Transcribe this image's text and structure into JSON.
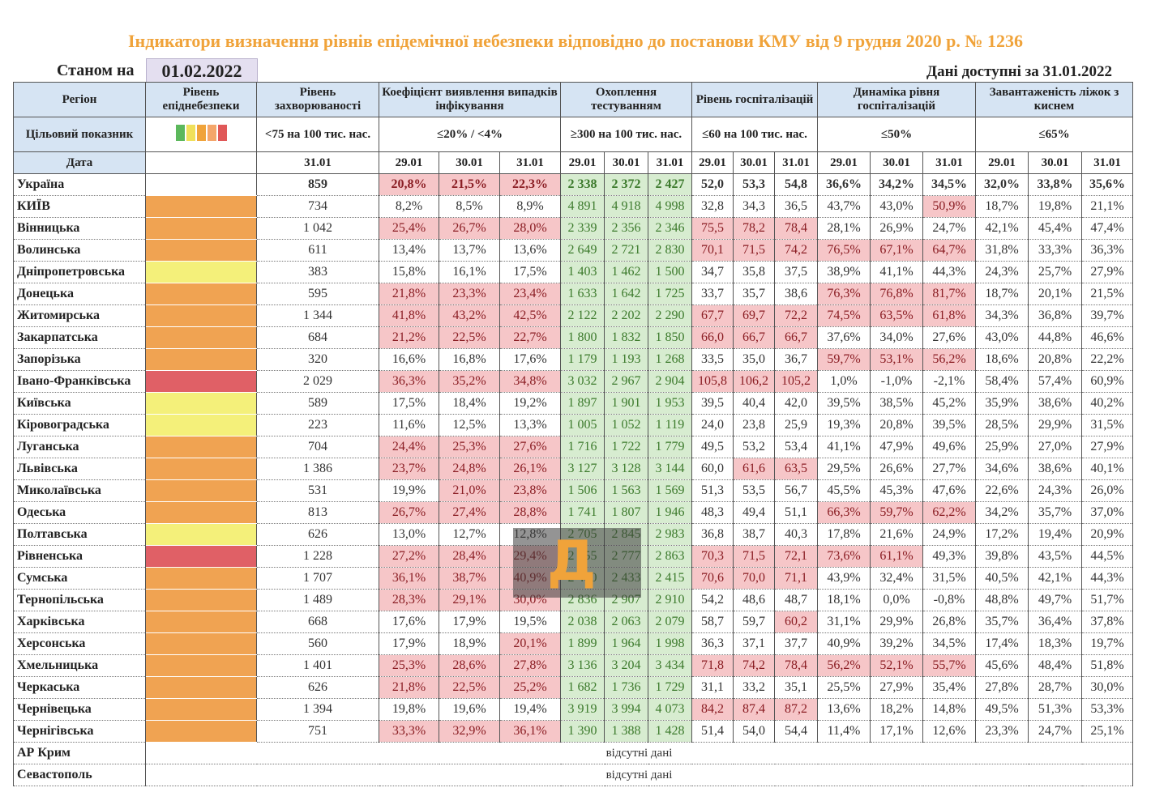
{
  "title": "Індикатори визначення рівнів епідемічної небезпеки відповідно до постанови КМУ від 9 грудня 2020 р. № 1236",
  "as_of_label": "Станом на",
  "as_of_date": "01.02.2022",
  "data_available": "Дані доступні за 31.01.2022",
  "headers": {
    "region": "Регіон",
    "level": "Рівень епіднебезпеки",
    "incidence": "Рівень захворюваності",
    "detection": "Коефіцієнт виявлення випадків інфікування",
    "testing": "Охоплення тестуванням",
    "hosp": "Рівень госпіталізацій",
    "dynamics": "Динаміка рівня госпіталізацій",
    "beds": "Завантаженість ліжок з киснем"
  },
  "targets": {
    "label": "Цільовий показник",
    "incidence": "<75 на 100 тис. нас.",
    "detection": "≤20% / <4%",
    "testing": "≥300 на 100 тис. нас.",
    "hosp": "≤60 на 100 тис. нас.",
    "dynamics": "≤50%",
    "beds": "≤65%"
  },
  "level_colors": [
    "#5cb85c",
    "#f0e05a",
    "#f0a33a",
    "#f4a66a",
    "#e05858"
  ],
  "dates": {
    "label": "Дата",
    "incidence": "31.01",
    "group": [
      "29.01",
      "30.01",
      "31.01"
    ]
  },
  "colors": {
    "orange": "#f0a352",
    "yellow": "#f4f07a",
    "red": "#e06066",
    "title": "#f0a33a",
    "pink": "#f6c6c8",
    "green": "#d7ecd0"
  },
  "rows": [
    {
      "name": "Україна",
      "level": "none",
      "inc": "859",
      "det": [
        "20,8%",
        "21,5%",
        "22,3%"
      ],
      "test": [
        "2 338",
        "2 372",
        "2 427"
      ],
      "hosp": [
        "52,0",
        "53,3",
        "54,8"
      ],
      "dyn": [
        "36,6%",
        "34,2%",
        "34,5%"
      ],
      "beds": [
        "32,0%",
        "33,8%",
        "35,6%"
      ],
      "det_hl": [
        1,
        1,
        1
      ],
      "hosp_hl": [
        0,
        0,
        0
      ],
      "dyn_hl": [
        0,
        0,
        0
      ]
    },
    {
      "name": "КИЇВ",
      "level": "orange",
      "inc": "734",
      "det": [
        "8,2%",
        "8,5%",
        "8,9%"
      ],
      "test": [
        "4 891",
        "4 918",
        "4 998"
      ],
      "hosp": [
        "32,8",
        "34,3",
        "36,5"
      ],
      "dyn": [
        "43,7%",
        "43,0%",
        "50,9%"
      ],
      "beds": [
        "18,7%",
        "19,8%",
        "21,1%"
      ],
      "det_hl": [
        0,
        0,
        0
      ],
      "hosp_hl": [
        0,
        0,
        0
      ],
      "dyn_hl": [
        0,
        0,
        1
      ]
    },
    {
      "name": "Вінницька",
      "level": "orange",
      "inc": "1 042",
      "det": [
        "25,4%",
        "26,7%",
        "28,0%"
      ],
      "test": [
        "2 339",
        "2 356",
        "2 346"
      ],
      "hosp": [
        "75,5",
        "78,2",
        "78,4"
      ],
      "dyn": [
        "28,1%",
        "26,9%",
        "24,7%"
      ],
      "beds": [
        "42,1%",
        "45,4%",
        "47,4%"
      ],
      "det_hl": [
        1,
        1,
        1
      ],
      "hosp_hl": [
        1,
        1,
        1
      ],
      "dyn_hl": [
        0,
        0,
        0
      ]
    },
    {
      "name": "Волинська",
      "level": "orange",
      "inc": "611",
      "det": [
        "13,4%",
        "13,7%",
        "13,6%"
      ],
      "test": [
        "2 649",
        "2 721",
        "2 830"
      ],
      "hosp": [
        "70,1",
        "71,5",
        "74,2"
      ],
      "dyn": [
        "76,5%",
        "67,1%",
        "64,7%"
      ],
      "beds": [
        "31,8%",
        "33,3%",
        "36,3%"
      ],
      "det_hl": [
        0,
        0,
        0
      ],
      "hosp_hl": [
        1,
        1,
        1
      ],
      "dyn_hl": [
        1,
        1,
        1
      ]
    },
    {
      "name": "Дніпропетровська",
      "level": "yellow",
      "inc": "383",
      "det": [
        "15,8%",
        "16,1%",
        "17,5%"
      ],
      "test": [
        "1 403",
        "1 462",
        "1 500"
      ],
      "hosp": [
        "34,7",
        "35,8",
        "37,5"
      ],
      "dyn": [
        "38,9%",
        "41,1%",
        "44,3%"
      ],
      "beds": [
        "24,3%",
        "25,7%",
        "27,9%"
      ],
      "det_hl": [
        0,
        0,
        0
      ],
      "hosp_hl": [
        0,
        0,
        0
      ],
      "dyn_hl": [
        0,
        0,
        0
      ]
    },
    {
      "name": "Донецька",
      "level": "orange",
      "inc": "595",
      "det": [
        "21,8%",
        "23,3%",
        "23,4%"
      ],
      "test": [
        "1 633",
        "1 642",
        "1 725"
      ],
      "hosp": [
        "33,7",
        "35,7",
        "38,6"
      ],
      "dyn": [
        "76,3%",
        "76,8%",
        "81,7%"
      ],
      "beds": [
        "18,7%",
        "20,1%",
        "21,5%"
      ],
      "det_hl": [
        1,
        1,
        1
      ],
      "hosp_hl": [
        0,
        0,
        0
      ],
      "dyn_hl": [
        1,
        1,
        1
      ]
    },
    {
      "name": "Житомирська",
      "level": "orange",
      "inc": "1 344",
      "det": [
        "41,8%",
        "43,2%",
        "42,5%"
      ],
      "test": [
        "2 122",
        "2 202",
        "2 290"
      ],
      "hosp": [
        "67,7",
        "69,7",
        "72,2"
      ],
      "dyn": [
        "74,5%",
        "63,5%",
        "61,8%"
      ],
      "beds": [
        "34,3%",
        "36,8%",
        "39,7%"
      ],
      "det_hl": [
        1,
        1,
        1
      ],
      "hosp_hl": [
        1,
        1,
        1
      ],
      "dyn_hl": [
        1,
        1,
        1
      ]
    },
    {
      "name": "Закарпатська",
      "level": "orange",
      "inc": "684",
      "det": [
        "21,2%",
        "22,5%",
        "22,7%"
      ],
      "test": [
        "1 800",
        "1 832",
        "1 850"
      ],
      "hosp": [
        "66,0",
        "66,7",
        "66,7"
      ],
      "dyn": [
        "37,6%",
        "34,0%",
        "27,6%"
      ],
      "beds": [
        "43,0%",
        "44,8%",
        "46,6%"
      ],
      "det_hl": [
        1,
        1,
        1
      ],
      "hosp_hl": [
        1,
        1,
        1
      ],
      "dyn_hl": [
        0,
        0,
        0
      ]
    },
    {
      "name": "Запорізька",
      "level": "orange",
      "inc": "320",
      "det": [
        "16,6%",
        "16,8%",
        "17,6%"
      ],
      "test": [
        "1 179",
        "1 193",
        "1 268"
      ],
      "hosp": [
        "33,5",
        "35,0",
        "36,7"
      ],
      "dyn": [
        "59,7%",
        "53,1%",
        "56,2%"
      ],
      "beds": [
        "18,6%",
        "20,8%",
        "22,2%"
      ],
      "det_hl": [
        0,
        0,
        0
      ],
      "hosp_hl": [
        0,
        0,
        0
      ],
      "dyn_hl": [
        1,
        1,
        1
      ]
    },
    {
      "name": "Івано-Франківська",
      "level": "red",
      "inc": "2 029",
      "det": [
        "36,3%",
        "35,2%",
        "34,8%"
      ],
      "test": [
        "3 032",
        "2 967",
        "2 904"
      ],
      "hosp": [
        "105,8",
        "106,2",
        "105,2"
      ],
      "dyn": [
        "1,0%",
        "-1,0%",
        "-2,1%"
      ],
      "beds": [
        "58,4%",
        "57,4%",
        "60,9%"
      ],
      "det_hl": [
        1,
        1,
        1
      ],
      "hosp_hl": [
        1,
        1,
        1
      ],
      "dyn_hl": [
        0,
        0,
        0
      ]
    },
    {
      "name": "Київська",
      "level": "yellow",
      "inc": "589",
      "det": [
        "17,5%",
        "18,4%",
        "19,2%"
      ],
      "test": [
        "1 897",
        "1 901",
        "1 953"
      ],
      "hosp": [
        "39,5",
        "40,4",
        "42,0"
      ],
      "dyn": [
        "39,5%",
        "38,5%",
        "45,2%"
      ],
      "beds": [
        "35,9%",
        "38,6%",
        "40,2%"
      ],
      "det_hl": [
        0,
        0,
        0
      ],
      "hosp_hl": [
        0,
        0,
        0
      ],
      "dyn_hl": [
        0,
        0,
        0
      ]
    },
    {
      "name": "Кіровоградська",
      "level": "yellow",
      "inc": "223",
      "det": [
        "11,6%",
        "12,5%",
        "13,3%"
      ],
      "test": [
        "1 005",
        "1 052",
        "1 119"
      ],
      "hosp": [
        "24,0",
        "23,8",
        "25,9"
      ],
      "dyn": [
        "19,3%",
        "20,8%",
        "39,5%"
      ],
      "beds": [
        "28,5%",
        "29,9%",
        "31,5%"
      ],
      "det_hl": [
        0,
        0,
        0
      ],
      "hosp_hl": [
        0,
        0,
        0
      ],
      "dyn_hl": [
        0,
        0,
        0
      ]
    },
    {
      "name": "Луганська",
      "level": "orange",
      "inc": "704",
      "det": [
        "24,4%",
        "25,3%",
        "27,6%"
      ],
      "test": [
        "1 716",
        "1 722",
        "1 779"
      ],
      "hosp": [
        "49,5",
        "53,2",
        "53,4"
      ],
      "dyn": [
        "41,1%",
        "47,9%",
        "49,6%"
      ],
      "beds": [
        "25,9%",
        "27,0%",
        "27,9%"
      ],
      "det_hl": [
        1,
        1,
        1
      ],
      "hosp_hl": [
        0,
        0,
        0
      ],
      "dyn_hl": [
        0,
        0,
        0
      ]
    },
    {
      "name": "Львівська",
      "level": "orange",
      "inc": "1 386",
      "det": [
        "23,7%",
        "24,8%",
        "26,1%"
      ],
      "test": [
        "3 127",
        "3 128",
        "3 144"
      ],
      "hosp": [
        "60,0",
        "61,6",
        "63,5"
      ],
      "dyn": [
        "29,5%",
        "26,6%",
        "27,7%"
      ],
      "beds": [
        "34,6%",
        "38,6%",
        "40,1%"
      ],
      "det_hl": [
        1,
        1,
        1
      ],
      "hosp_hl": [
        0,
        1,
        1
      ],
      "dyn_hl": [
        0,
        0,
        0
      ]
    },
    {
      "name": "Миколаївська",
      "level": "orange",
      "inc": "531",
      "det": [
        "19,9%",
        "21,0%",
        "23,8%"
      ],
      "test": [
        "1 506",
        "1 563",
        "1 569"
      ],
      "hosp": [
        "51,3",
        "53,5",
        "56,7"
      ],
      "dyn": [
        "45,5%",
        "45,3%",
        "47,6%"
      ],
      "beds": [
        "22,6%",
        "24,3%",
        "26,0%"
      ],
      "det_hl": [
        0,
        1,
        1
      ],
      "hosp_hl": [
        0,
        0,
        0
      ],
      "dyn_hl": [
        0,
        0,
        0
      ]
    },
    {
      "name": "Одеська",
      "level": "orange",
      "inc": "813",
      "det": [
        "26,7%",
        "27,4%",
        "28,8%"
      ],
      "test": [
        "1 741",
        "1 807",
        "1 946"
      ],
      "hosp": [
        "48,3",
        "49,4",
        "51,1"
      ],
      "dyn": [
        "66,3%",
        "59,7%",
        "62,2%"
      ],
      "beds": [
        "34,2%",
        "35,7%",
        "37,0%"
      ],
      "det_hl": [
        1,
        1,
        1
      ],
      "hosp_hl": [
        0,
        0,
        0
      ],
      "dyn_hl": [
        1,
        1,
        1
      ]
    },
    {
      "name": "Полтавська",
      "level": "yellow",
      "inc": "626",
      "det": [
        "13,0%",
        "12,7%",
        "12,8%"
      ],
      "test": [
        "2 705",
        "2 845",
        "2 983"
      ],
      "hosp": [
        "36,8",
        "38,7",
        "40,3"
      ],
      "dyn": [
        "17,8%",
        "21,6%",
        "24,9%"
      ],
      "beds": [
        "17,2%",
        "19,4%",
        "20,9%"
      ],
      "det_hl": [
        0,
        0,
        0
      ],
      "hosp_hl": [
        0,
        0,
        0
      ],
      "dyn_hl": [
        0,
        0,
        0
      ]
    },
    {
      "name": "Рівненська",
      "level": "red",
      "inc": "1 228",
      "det": [
        "27,2%",
        "28,4%",
        "29,4%"
      ],
      "test": [
        "2 755",
        "2 777",
        "2 863"
      ],
      "hosp": [
        "70,3",
        "71,5",
        "72,1"
      ],
      "dyn": [
        "73,6%",
        "61,1%",
        "49,3%"
      ],
      "beds": [
        "39,8%",
        "43,5%",
        "44,5%"
      ],
      "det_hl": [
        1,
        1,
        1
      ],
      "hosp_hl": [
        1,
        1,
        1
      ],
      "dyn_hl": [
        1,
        1,
        0
      ]
    },
    {
      "name": "Сумська",
      "level": "orange",
      "inc": "1 707",
      "det": [
        "36,1%",
        "38,7%",
        "40,9%"
      ],
      "test": [
        "2 480",
        "2 433",
        "2 415"
      ],
      "hosp": [
        "70,6",
        "70,0",
        "71,1"
      ],
      "dyn": [
        "43,9%",
        "32,4%",
        "31,5%"
      ],
      "beds": [
        "40,5%",
        "42,1%",
        "44,3%"
      ],
      "det_hl": [
        1,
        1,
        1
      ],
      "hosp_hl": [
        1,
        1,
        1
      ],
      "dyn_hl": [
        0,
        0,
        0
      ]
    },
    {
      "name": "Тернопільська",
      "level": "orange",
      "inc": "1 489",
      "det": [
        "28,3%",
        "29,1%",
        "30,0%"
      ],
      "test": [
        "2 836",
        "2 907",
        "2 910"
      ],
      "hosp": [
        "54,2",
        "48,6",
        "48,7"
      ],
      "dyn": [
        "18,1%",
        "0,0%",
        "-0,8%"
      ],
      "beds": [
        "48,8%",
        "49,7%",
        "51,7%"
      ],
      "det_hl": [
        1,
        1,
        1
      ],
      "hosp_hl": [
        0,
        0,
        0
      ],
      "dyn_hl": [
        0,
        0,
        0
      ]
    },
    {
      "name": "Харківська",
      "level": "orange",
      "inc": "668",
      "det": [
        "17,6%",
        "17,9%",
        "19,5%"
      ],
      "test": [
        "2 038",
        "2 063",
        "2 079"
      ],
      "hosp": [
        "58,7",
        "59,7",
        "60,2"
      ],
      "dyn": [
        "31,1%",
        "29,9%",
        "26,8%"
      ],
      "beds": [
        "35,7%",
        "36,4%",
        "37,8%"
      ],
      "det_hl": [
        0,
        0,
        0
      ],
      "hosp_hl": [
        0,
        0,
        1
      ],
      "dyn_hl": [
        0,
        0,
        0
      ]
    },
    {
      "name": "Херсонська",
      "level": "orange",
      "inc": "560",
      "det": [
        "17,9%",
        "18,9%",
        "20,1%"
      ],
      "test": [
        "1 899",
        "1 964",
        "1 998"
      ],
      "hosp": [
        "36,3",
        "37,1",
        "37,7"
      ],
      "dyn": [
        "40,9%",
        "39,2%",
        "34,5%"
      ],
      "beds": [
        "17,4%",
        "18,3%",
        "19,7%"
      ],
      "det_hl": [
        0,
        0,
        1
      ],
      "hosp_hl": [
        0,
        0,
        0
      ],
      "dyn_hl": [
        0,
        0,
        0
      ]
    },
    {
      "name": "Хмельницька",
      "level": "orange",
      "inc": "1 401",
      "det": [
        "25,3%",
        "28,6%",
        "27,8%"
      ],
      "test": [
        "3 136",
        "3 204",
        "3 434"
      ],
      "hosp": [
        "71,8",
        "74,2",
        "78,4"
      ],
      "dyn": [
        "56,2%",
        "52,1%",
        "55,7%"
      ],
      "beds": [
        "45,6%",
        "48,4%",
        "51,8%"
      ],
      "det_hl": [
        1,
        1,
        1
      ],
      "hosp_hl": [
        1,
        1,
        1
      ],
      "dyn_hl": [
        1,
        1,
        1
      ]
    },
    {
      "name": "Черкаська",
      "level": "orange",
      "inc": "626",
      "det": [
        "21,8%",
        "22,5%",
        "25,2%"
      ],
      "test": [
        "1 682",
        "1 736",
        "1 729"
      ],
      "hosp": [
        "31,1",
        "33,2",
        "35,1"
      ],
      "dyn": [
        "25,5%",
        "27,9%",
        "35,4%"
      ],
      "beds": [
        "27,8%",
        "28,7%",
        "30,0%"
      ],
      "det_hl": [
        1,
        1,
        1
      ],
      "hosp_hl": [
        0,
        0,
        0
      ],
      "dyn_hl": [
        0,
        0,
        0
      ]
    },
    {
      "name": "Чернівецька",
      "level": "orange",
      "inc": "1 394",
      "det": [
        "19,8%",
        "19,6%",
        "19,4%"
      ],
      "test": [
        "3 919",
        "3 994",
        "4 073"
      ],
      "hosp": [
        "84,2",
        "87,4",
        "87,2"
      ],
      "dyn": [
        "13,6%",
        "18,2%",
        "14,8%"
      ],
      "beds": [
        "49,5%",
        "51,3%",
        "53,3%"
      ],
      "det_hl": [
        0,
        0,
        0
      ],
      "hosp_hl": [
        1,
        1,
        1
      ],
      "dyn_hl": [
        0,
        0,
        0
      ]
    },
    {
      "name": "Чернігівська",
      "level": "orange",
      "inc": "751",
      "det": [
        "33,3%",
        "32,9%",
        "36,1%"
      ],
      "test": [
        "1 390",
        "1 388",
        "1 428"
      ],
      "hosp": [
        "51,4",
        "54,0",
        "54,4"
      ],
      "dyn": [
        "11,4%",
        "17,1%",
        "12,6%"
      ],
      "beds": [
        "23,3%",
        "24,7%",
        "25,1%"
      ],
      "det_hl": [
        1,
        1,
        1
      ],
      "hosp_hl": [
        0,
        0,
        0
      ],
      "dyn_hl": [
        0,
        0,
        0
      ]
    }
  ],
  "no_data_rows": [
    {
      "name": "АР Крим",
      "text": "відсутні дані"
    },
    {
      "name": "Севастополь",
      "text": "відсутні дані"
    }
  ],
  "watermark": "Д"
}
